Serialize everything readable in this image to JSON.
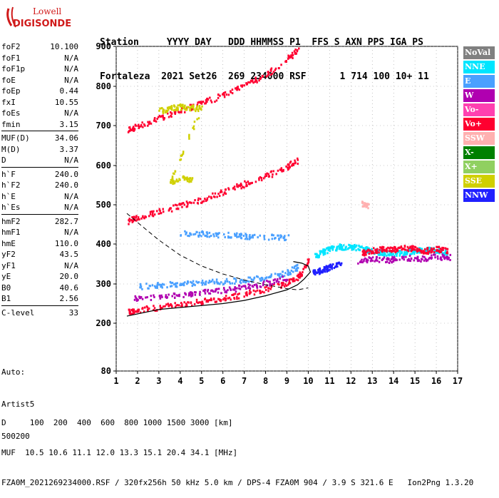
{
  "logo": {
    "line1": "Lowell",
    "line2": "DIGISONDE",
    "color": "#d01a1a"
  },
  "header": {
    "line1": "Station     YYYY DAY   DDD HHMMSS P1  FFS S AXN PPS IGA PS",
    "line2": "Fortaleza  2021 Set26  269 234000 RSF      1 714 100 10+ 11"
  },
  "params": [
    {
      "group": [
        {
          "label": "foF2",
          "value": "10.100"
        },
        {
          "label": "foF1",
          "value": "N/A"
        },
        {
          "label": "foF1p",
          "value": "N/A"
        },
        {
          "label": "foE",
          "value": "N/A"
        },
        {
          "label": "foEp",
          "value": "0.44"
        },
        {
          "label": "fxI",
          "value": "10.55"
        },
        {
          "label": "foEs",
          "value": "N/A"
        },
        {
          "label": "fmin",
          "value": "3.15"
        }
      ]
    },
    {
      "group": [
        {
          "label": "MUF(D)",
          "value": "34.06"
        },
        {
          "label": "M(D)",
          "value": "3.37"
        },
        {
          "label": "D",
          "value": "N/A"
        }
      ]
    },
    {
      "group": [
        {
          "label": "h`F",
          "value": "240.0"
        },
        {
          "label": "h`F2",
          "value": "240.0"
        },
        {
          "label": "h`E",
          "value": "N/A"
        },
        {
          "label": "h`Es",
          "value": "N/A"
        }
      ]
    },
    {
      "group": [
        {
          "label": "hmF2",
          "value": "282.7"
        },
        {
          "label": "hmF1",
          "value": "N/A"
        },
        {
          "label": "hmE",
          "value": "110.0"
        },
        {
          "label": "yF2",
          "value": "43.5"
        },
        {
          "label": "yF1",
          "value": "N/A"
        },
        {
          "label": "yE",
          "value": "20.0"
        },
        {
          "label": "B0",
          "value": "40.6"
        },
        {
          "label": "B1",
          "value": "2.56"
        }
      ]
    },
    {
      "group": [
        {
          "label": "C-level",
          "value": "33"
        }
      ]
    }
  ],
  "auto": {
    "line1": "Auto:",
    "line2": "Artist5",
    "line3": "500200"
  },
  "legend": [
    {
      "label": "NoVal",
      "color": "#808080"
    },
    {
      "label": "NNE",
      "color": "#00e5ff"
    },
    {
      "label": "E",
      "color": "#4aa0ff"
    },
    {
      "label": "W",
      "color": "#b000b0"
    },
    {
      "label": "Vo-",
      "color": "#ff40b0"
    },
    {
      "label": "Vo+",
      "color": "#ff0030"
    },
    {
      "label": "SSW",
      "color": "#ffb0b0"
    },
    {
      "label": "X-",
      "color": "#008000"
    },
    {
      "label": "X+",
      "color": "#90d060"
    },
    {
      "label": "SSE",
      "color": "#d0d000"
    },
    {
      "label": "NNW",
      "color": "#2020ff"
    }
  ],
  "footer": {
    "line1": "D     100  200  400  600  800 1000 1500 3000 [km]",
    "line2": "MUF  10.5 10.6 11.1 12.0 13.3 15.1 20.4 34.1 [MHz]",
    "line3": "FZA0M_2021269234000.RSF / 320fx256h 50 kHz 5.0 km / DPS-4 FZA0M 904 / 3.9 S 321.6 E   Ion2Png 1.3.20"
  },
  "chart_data": {
    "type": "scatter",
    "xlim": [
      1,
      17
    ],
    "ylim": [
      80,
      900
    ],
    "xticks": [
      "1",
      "2",
      "3",
      "4",
      "5",
      "6",
      "7",
      "8",
      "9",
      "10",
      "11",
      "12",
      "13",
      "14",
      "15",
      "16",
      "17"
    ],
    "yticks": [
      "80",
      "200",
      "300",
      "400",
      "500",
      "600",
      "700",
      "800",
      "900"
    ],
    "ytick_values": [
      80,
      200,
      300,
      400,
      500,
      600,
      700,
      800,
      900
    ],
    "grid": true,
    "traces": [
      {
        "color": "#ff0030",
        "points": [
          [
            1.5,
            230
          ],
          [
            2,
            236
          ],
          [
            3,
            242
          ],
          [
            4,
            250
          ],
          [
            5,
            258
          ],
          [
            6,
            266
          ],
          [
            7,
            276
          ],
          [
            8,
            290
          ],
          [
            9,
            305
          ],
          [
            9.6,
            325
          ],
          [
            10,
            360
          ]
        ]
      },
      {
        "color": "#ff0030",
        "points": [
          [
            1.5,
            460
          ],
          [
            2,
            470
          ],
          [
            3,
            485
          ],
          [
            4,
            500
          ],
          [
            5,
            515
          ],
          [
            6,
            535
          ],
          [
            7,
            555
          ],
          [
            8,
            575
          ],
          [
            9,
            600
          ],
          [
            9.5,
            615
          ]
        ]
      },
      {
        "color": "#ff0030",
        "points": [
          [
            1.5,
            690
          ],
          [
            2,
            700
          ],
          [
            3,
            720
          ],
          [
            4,
            740
          ],
          [
            5,
            760
          ],
          [
            6,
            780
          ],
          [
            7,
            805
          ],
          [
            8,
            830
          ],
          [
            9,
            870
          ],
          [
            9.5,
            895
          ]
        ]
      },
      {
        "color": "#4aa0ff",
        "points": [
          [
            2,
            295
          ],
          [
            3,
            300
          ],
          [
            4,
            302
          ],
          [
            5,
            305
          ],
          [
            6,
            308
          ],
          [
            7,
            312
          ],
          [
            8,
            318
          ],
          [
            9,
            330
          ],
          [
            9.5,
            345
          ]
        ]
      },
      {
        "color": "#b000b0",
        "points": [
          [
            1.8,
            265
          ],
          [
            3,
            270
          ],
          [
            4,
            275
          ],
          [
            5,
            280
          ],
          [
            6,
            286
          ],
          [
            7,
            294
          ],
          [
            8,
            304
          ],
          [
            9,
            318
          ]
        ]
      },
      {
        "color": "#4aa0ff",
        "points": [
          [
            4,
            430
          ],
          [
            5,
            428
          ],
          [
            6,
            425
          ],
          [
            7,
            422
          ],
          [
            8,
            420
          ],
          [
            9,
            418
          ]
        ]
      },
      {
        "color": "#2020ff",
        "points": [
          [
            10.2,
            330
          ],
          [
            10.5,
            335
          ],
          [
            10.8,
            340
          ],
          [
            11,
            345
          ],
          [
            11.5,
            350
          ]
        ]
      },
      {
        "color": "#00e5ff",
        "points": [
          [
            10.3,
            370
          ],
          [
            10.6,
            380
          ],
          [
            11,
            390
          ],
          [
            11.5,
            395
          ],
          [
            12,
            395
          ],
          [
            12.5,
            390
          ],
          [
            13,
            385
          ],
          [
            13.5,
            380
          ],
          [
            14,
            378
          ],
          [
            14.5,
            380
          ],
          [
            15,
            385
          ],
          [
            15.5,
            388
          ],
          [
            16,
            385
          ],
          [
            16.5,
            380
          ]
        ]
      },
      {
        "color": "#ff0030",
        "points": [
          [
            12.5,
            380
          ],
          [
            13,
            385
          ],
          [
            13.5,
            390
          ],
          [
            14,
            388
          ],
          [
            14.5,
            392
          ],
          [
            15,
            390
          ],
          [
            15.5,
            385
          ],
          [
            16,
            390
          ],
          [
            16.5,
            385
          ]
        ]
      },
      {
        "color": "#b000b0",
        "points": [
          [
            12.3,
            360
          ],
          [
            13,
            365
          ],
          [
            13.8,
            362
          ],
          [
            14.5,
            368
          ],
          [
            15.2,
            365
          ],
          [
            16,
            370
          ],
          [
            16.7,
            368
          ]
        ]
      },
      {
        "color": "#ffb0b0",
        "points": [
          [
            12.5,
            505
          ],
          [
            12.8,
            500
          ]
        ]
      },
      {
        "color": "#d0d000",
        "points": [
          [
            3,
            740
          ],
          [
            3.5,
            745
          ],
          [
            4,
            750
          ],
          [
            4.5,
            748
          ],
          [
            5,
            745
          ],
          [
            3.5,
            560
          ],
          [
            4,
            570
          ],
          [
            4.5,
            565
          ]
        ]
      }
    ],
    "profile": [
      [
        1.5,
        218
      ],
      [
        3,
        235
      ],
      [
        4,
        240
      ],
      [
        5,
        245
      ],
      [
        6,
        250
      ],
      [
        7,
        258
      ],
      [
        8,
        270
      ],
      [
        9,
        285
      ],
      [
        9.5,
        298
      ],
      [
        9.8,
        312
      ],
      [
        10.1,
        330
      ],
      [
        10,
        345
      ],
      [
        9.7,
        352
      ],
      [
        9.3,
        356
      ]
    ],
    "dashed": [
      [
        1.5,
        478
      ],
      [
        2,
        455
      ],
      [
        3,
        410
      ],
      [
        4,
        372
      ],
      [
        5,
        345
      ],
      [
        6,
        325
      ],
      [
        7,
        310
      ],
      [
        8,
        298
      ],
      [
        9,
        288
      ],
      [
        9.5,
        285
      ],
      [
        10,
        290
      ]
    ]
  }
}
